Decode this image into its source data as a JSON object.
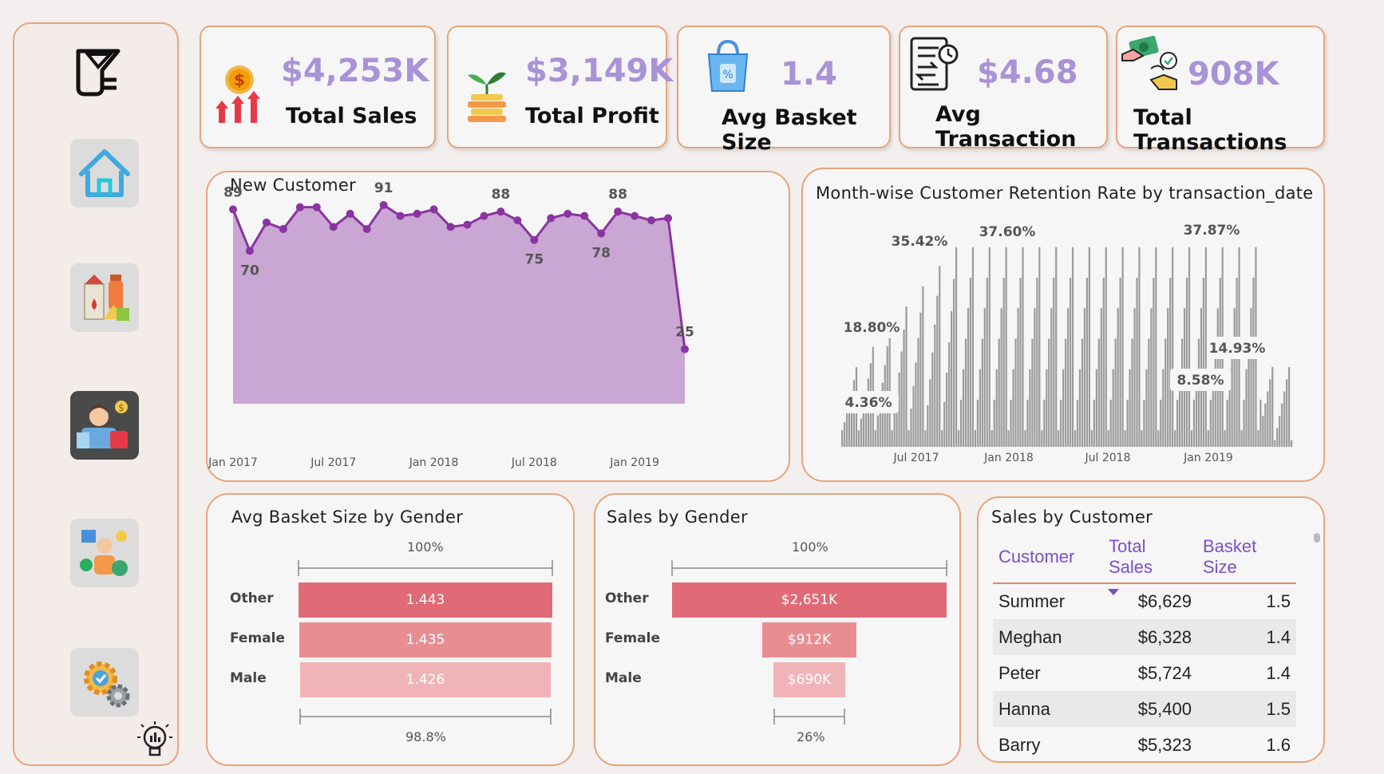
{
  "kpis": [
    {
      "value": "$4,253K",
      "label": "Total Sales",
      "icon": "sales-growth-icon"
    },
    {
      "value": "$3,149K",
      "label": "Total Profit",
      "icon": "profit-coins-icon"
    },
    {
      "value": "1.4",
      "label": "Avg Basket Size",
      "icon": "shopping-bag-icon"
    },
    {
      "value": "$4.68",
      "label": "Avg Transaction",
      "icon": "transaction-document-icon"
    },
    {
      "value": "908K",
      "label": "Total Transactions",
      "icon": "money-transfer-icon"
    }
  ],
  "sidebar": {
    "logo": "basket-logo-icon",
    "items": [
      {
        "icon": "home-icon",
        "active": false
      },
      {
        "icon": "groceries-icon",
        "active": false
      },
      {
        "icon": "customer-icon",
        "active": true
      },
      {
        "icon": "team-management-icon",
        "active": false
      },
      {
        "icon": "settings-gear-icon",
        "active": false
      }
    ],
    "bottom_icon": "insight-bulb-icon"
  },
  "colors": {
    "accent_border": "#e8a47c",
    "kpi_value": "#a993d6",
    "line": "#8a34a0",
    "area": "#c9a6d3",
    "bar_other": "#e06b76",
    "bar_female": "#e88e93",
    "bar_male": "#f0b4b8",
    "table_header": "#7b4fc9"
  },
  "new_customer": {
    "title": "New Customer",
    "chart_data": {
      "type": "area",
      "x_ticks": [
        "Jan 2017",
        "Jul 2017",
        "Jan 2018",
        "Jul 2018",
        "Jan 2019"
      ],
      "values": [
        89,
        70,
        83,
        80,
        90,
        90,
        81,
        87,
        80,
        91,
        86,
        87,
        89,
        81,
        82,
        86,
        88,
        84,
        75,
        85,
        87,
        86,
        78,
        88,
        86,
        84,
        85,
        25
      ],
      "labeled_values": [
        89,
        70,
        91,
        78,
        88,
        75,
        88,
        25
      ],
      "ylim": [
        0,
        95
      ]
    }
  },
  "retention": {
    "title": "Month-wise Customer Retention Rate by transaction_date",
    "chart_data": {
      "type": "bar",
      "x_ticks": [
        "Jul 2017",
        "Jan 2018",
        "Jul 2018",
        "Jan 2019"
      ],
      "labels": [
        "18.80%",
        "4.36%",
        "35.42%",
        "37.60%",
        "37.87%",
        "14.93%",
        "8.58%"
      ],
      "ylim": [
        0,
        40
      ]
    }
  },
  "basket_gender": {
    "title": "Avg Basket Size by Gender",
    "top_pct": "100%",
    "bottom_pct": "98.8%",
    "chart_data": {
      "type": "bar",
      "categories": [
        "Other",
        "Female",
        "Male"
      ],
      "values": [
        1.443,
        1.435,
        1.426
      ],
      "labels": [
        "1.443",
        "1.435",
        "1.426"
      ]
    }
  },
  "sales_gender": {
    "title": "Sales by Gender",
    "top_pct": "100%",
    "bottom_pct": "26%",
    "chart_data": {
      "type": "bar",
      "categories": [
        "Other",
        "Female",
        "Male"
      ],
      "values": [
        2651,
        912,
        690
      ],
      "labels": [
        "$2,651K",
        "$912K",
        "$690K"
      ]
    }
  },
  "sales_customer": {
    "title": "Sales by Customer",
    "columns": [
      "Customer",
      "Total Sales",
      "Basket Size"
    ],
    "rows": [
      [
        "Summer",
        "$6,629",
        "1.5"
      ],
      [
        "Meghan",
        "$6,328",
        "1.4"
      ],
      [
        "Peter",
        "$5,724",
        "1.4"
      ],
      [
        "Hanna",
        "$5,400",
        "1.5"
      ],
      [
        "Barry",
        "$5,323",
        "1.6"
      ]
    ]
  }
}
